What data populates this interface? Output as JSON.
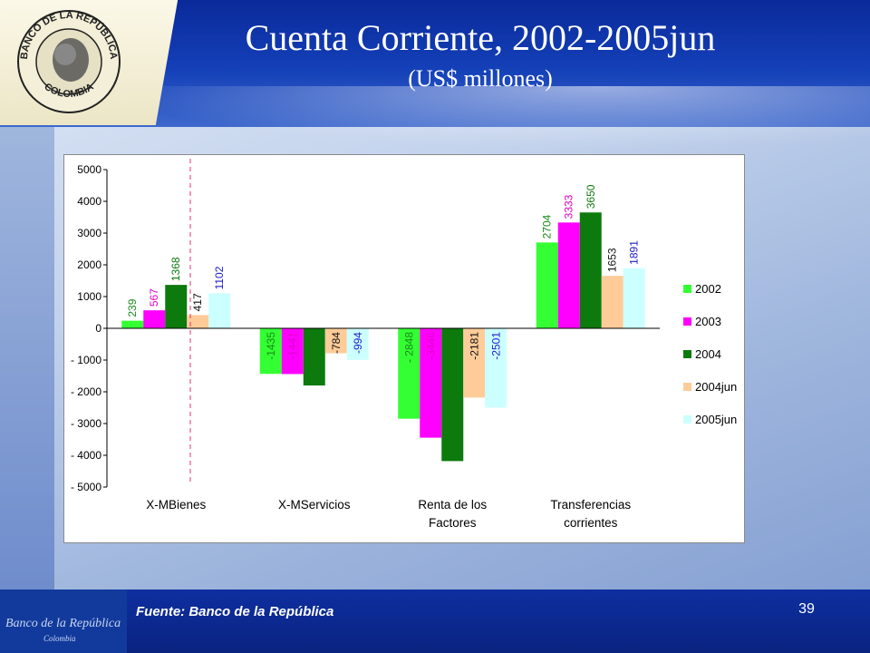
{
  "title": "Cuenta Corriente, 2002-2005jun",
  "subtitle": "(US$ millones)",
  "source": "Fuente: Banco de la República",
  "page_number": "39",
  "logo": {
    "text_top": "BANCO DE LA REPÚBLICA",
    "text_bottom": "COLOMBIA"
  },
  "footer_logo": {
    "text": "Banco de la República",
    "sub": "Colombia"
  },
  "colors": {
    "header": "#0a2a9a",
    "footer": "#0a2380"
  },
  "chart_data": {
    "type": "bar",
    "title": "Cuenta Corriente, 2002-2005jun",
    "ylabel": "",
    "xlabel": "",
    "ylim": [
      -5000,
      5000
    ],
    "yticks": [
      5000,
      4000,
      3000,
      2000,
      1000,
      0,
      -1000,
      -2000,
      -3000,
      -4000,
      -5000
    ],
    "ytick_labels": [
      "5000",
      "4000",
      "3000",
      "2000",
      "1000",
      "0",
      "- 1000",
      "- 2000",
      "- 3000",
      "- 4000",
      "- 5000"
    ],
    "categories": [
      [
        "X-MBienes"
      ],
      [
        "X-MServicios"
      ],
      [
        "Renta de los",
        "Factores"
      ],
      [
        "Transferencias",
        "corrientes"
      ]
    ],
    "legend_position": "right",
    "series": [
      {
        "name": "2002",
        "color": "#33ff33",
        "label_color": "#1a8a1a",
        "values": [
          239,
          -1435,
          -2848,
          2704
        ],
        "labels": [
          "239",
          "-1435",
          "- 2848",
          "2704"
        ]
      },
      {
        "name": "2003",
        "color": "#ff00ff",
        "label_color": "#e000c8",
        "values": [
          567,
          -1441,
          -3446,
          3333
        ],
        "labels": [
          "567",
          "-1441",
          "-3446",
          "3333"
        ]
      },
      {
        "name": "2004",
        "color": "#0c7a0c",
        "label_color": "#0c7a0c",
        "values": [
          1368,
          -1801,
          -4183,
          3650
        ],
        "labels": [
          "1368",
          "-1801",
          "-4183",
          "3650"
        ]
      },
      {
        "name": "2004jun",
        "color": "#ffcc99",
        "label_color": "#111111",
        "values": [
          417,
          -784,
          -2181,
          1653
        ],
        "labels": [
          "417",
          "-784",
          "-2181",
          "1653"
        ]
      },
      {
        "name": "2005jun",
        "color": "#ccffff",
        "label_color": "#1c1cc8",
        "values": [
          1102,
          -994,
          -2501,
          1891
        ],
        "labels": [
          "1102",
          "-994",
          "-2501",
          "1891"
        ]
      }
    ]
  }
}
